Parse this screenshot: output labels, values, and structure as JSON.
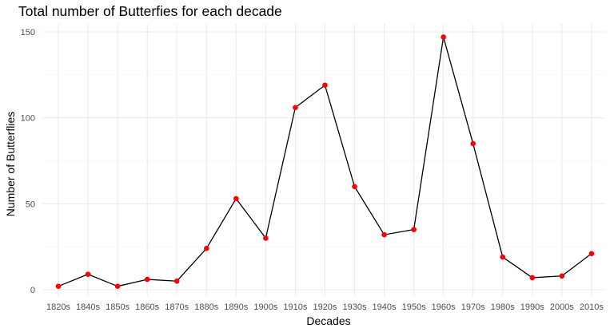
{
  "chart_data": {
    "type": "line",
    "title": "Total number of Butterfies for each decade",
    "xlabel": "Decades",
    "ylabel": "Number of Butterflies",
    "categories": [
      "1820s",
      "1840s",
      "1850s",
      "1860s",
      "1870s",
      "1880s",
      "1890s",
      "1900s",
      "1910s",
      "1920s",
      "1930s",
      "1940s",
      "1950s",
      "1960s",
      "1970s",
      "1980s",
      "1990s",
      "2000s",
      "2010s"
    ],
    "values": [
      2,
      9,
      2,
      6,
      5,
      24,
      53,
      30,
      106,
      119,
      60,
      32,
      35,
      147,
      85,
      19,
      7,
      8,
      21
    ],
    "ylim": [
      0,
      150
    ],
    "yticks": [
      "0",
      "50",
      "100",
      "150"
    ],
    "grid": true,
    "line_color": "#000000",
    "point_color": "#ff0000"
  }
}
